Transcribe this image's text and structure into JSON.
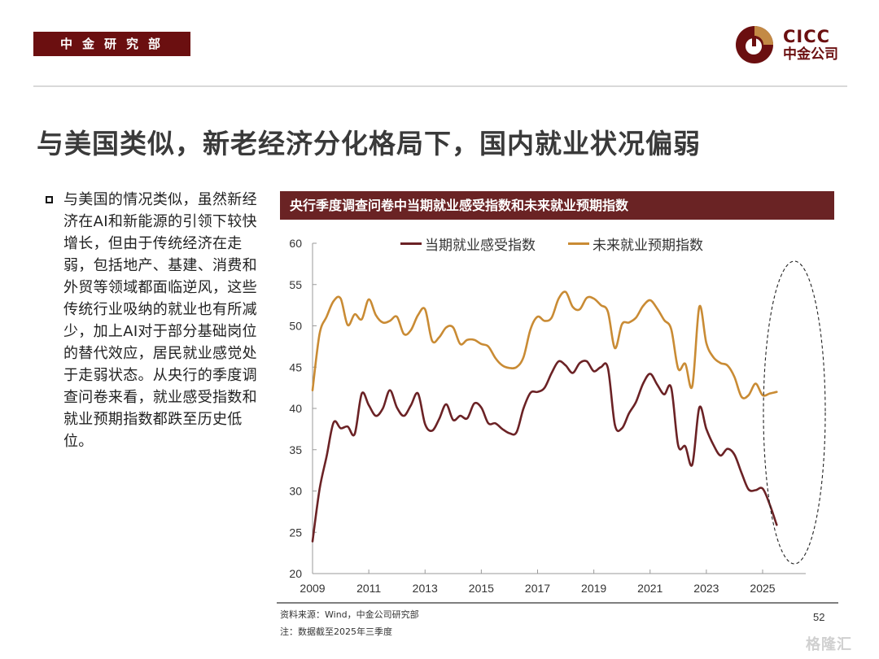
{
  "header": {
    "department": "中金研究部",
    "logo_en": "CICC",
    "logo_cn": "中金公司",
    "brand_color": "#6b0f10",
    "brand_accent": "#c38a45"
  },
  "page_title": "与美国类似，新老经济分化格局下，国内就业状况偏弱",
  "bullet": {
    "text": "与美国的情况类似，虽然新经济在AI和新能源的引领下较快增长，但由于传统经济在走弱，包括地产、基建、消费和外贸等领域都面临逆风，这些传统行业吸纳的就业也有所减少，加上AI对于部分基础岗位的替代效应，居民就业感觉处于走弱状态。从央行的季度调查问卷来看，就业感受指数和就业预期指数都跌至历史低位。"
  },
  "chart_data": {
    "type": "line",
    "title": "央行季度调查问卷中当期就业感受指数和未来就业预期指数",
    "xlabel": "",
    "ylabel": "",
    "xlim": [
      2009,
      2025.6
    ],
    "ylim": [
      20,
      60
    ],
    "x_ticks": [
      "2009",
      "2011",
      "2013",
      "2015",
      "2017",
      "2019",
      "2021",
      "2023",
      "2025"
    ],
    "y_ticks": [
      "60",
      "55",
      "50",
      "45",
      "40",
      "35",
      "30",
      "25",
      "20"
    ],
    "grid": false,
    "legend_position": "top",
    "annotation": "dashed ellipse highlighting 2024–2025",
    "x": [
      2009.0,
      2009.25,
      2009.5,
      2009.75,
      2010.0,
      2010.25,
      2010.5,
      2010.75,
      2011.0,
      2011.25,
      2011.5,
      2011.75,
      2012.0,
      2012.25,
      2012.5,
      2012.75,
      2013.0,
      2013.25,
      2013.5,
      2013.75,
      2014.0,
      2014.25,
      2014.5,
      2014.75,
      2015.0,
      2015.25,
      2015.5,
      2015.75,
      2016.0,
      2016.25,
      2016.5,
      2016.75,
      2017.0,
      2017.25,
      2017.5,
      2017.75,
      2018.0,
      2018.25,
      2018.5,
      2018.75,
      2019.0,
      2019.25,
      2019.5,
      2019.75,
      2020.0,
      2020.25,
      2020.5,
      2020.75,
      2021.0,
      2021.25,
      2021.5,
      2021.75,
      2022.0,
      2022.25,
      2022.5,
      2022.75,
      2023.0,
      2023.25,
      2023.5,
      2023.75,
      2024.0,
      2024.25,
      2024.5,
      2024.75,
      2025.0,
      2025.25,
      2025.5
    ],
    "series": [
      {
        "name": "当期就业感受指数",
        "color": "#6b2225",
        "values": [
          23.9,
          30.2,
          34.2,
          38.3,
          37.6,
          37.8,
          36.9,
          41.8,
          40.4,
          39.1,
          40.0,
          42.2,
          40.1,
          39.1,
          40.4,
          41.8,
          38.1,
          37.3,
          38.7,
          40.5,
          38.6,
          39.1,
          38.8,
          40.6,
          40.1,
          38.2,
          38.2,
          37.5,
          37.0,
          37.1,
          40.0,
          41.9,
          42.0,
          42.5,
          44.3,
          45.7,
          45.2,
          44.3,
          45.5,
          45.7,
          44.5,
          45.0,
          44.9,
          38.0,
          37.6,
          39.4,
          40.8,
          43.0,
          44.2,
          42.9,
          41.7,
          42.5,
          35.5,
          35.4,
          33.2,
          40.1,
          37.5,
          35.6,
          34.3,
          35.1,
          34.4,
          32.2,
          30.2,
          30.1,
          30.3,
          28.4,
          25.9
        ]
      },
      {
        "name": "未来就业预期指数",
        "color": "#c98b34",
        "values": [
          42.2,
          49.0,
          51.1,
          53.0,
          53.3,
          50.1,
          51.4,
          50.8,
          53.2,
          51.3,
          50.4,
          50.6,
          51.1,
          49.0,
          49.5,
          51.3,
          52.0,
          48.2,
          48.6,
          49.8,
          49.8,
          47.8,
          48.3,
          48.3,
          47.8,
          47.5,
          46.1,
          45.2,
          44.9,
          45.0,
          46.2,
          49.6,
          51.1,
          50.6,
          51.0,
          53.3,
          54.1,
          52.3,
          52.0,
          53.4,
          53.3,
          52.5,
          51.7,
          47.3,
          50.2,
          50.4,
          51.0,
          52.4,
          53.1,
          52.1,
          50.7,
          49.6,
          44.8,
          45.4,
          42.7,
          52.3,
          47.9,
          46.2,
          45.5,
          45.2,
          43.8,
          41.4,
          41.6,
          43.0,
          41.6,
          41.8,
          42.0
        ]
      }
    ]
  },
  "footer": {
    "source": "资料来源：Wind，中金公司研究部",
    "note": "注：数据截至2025年三季度",
    "page_number": "52",
    "watermark": "格隆汇"
  }
}
